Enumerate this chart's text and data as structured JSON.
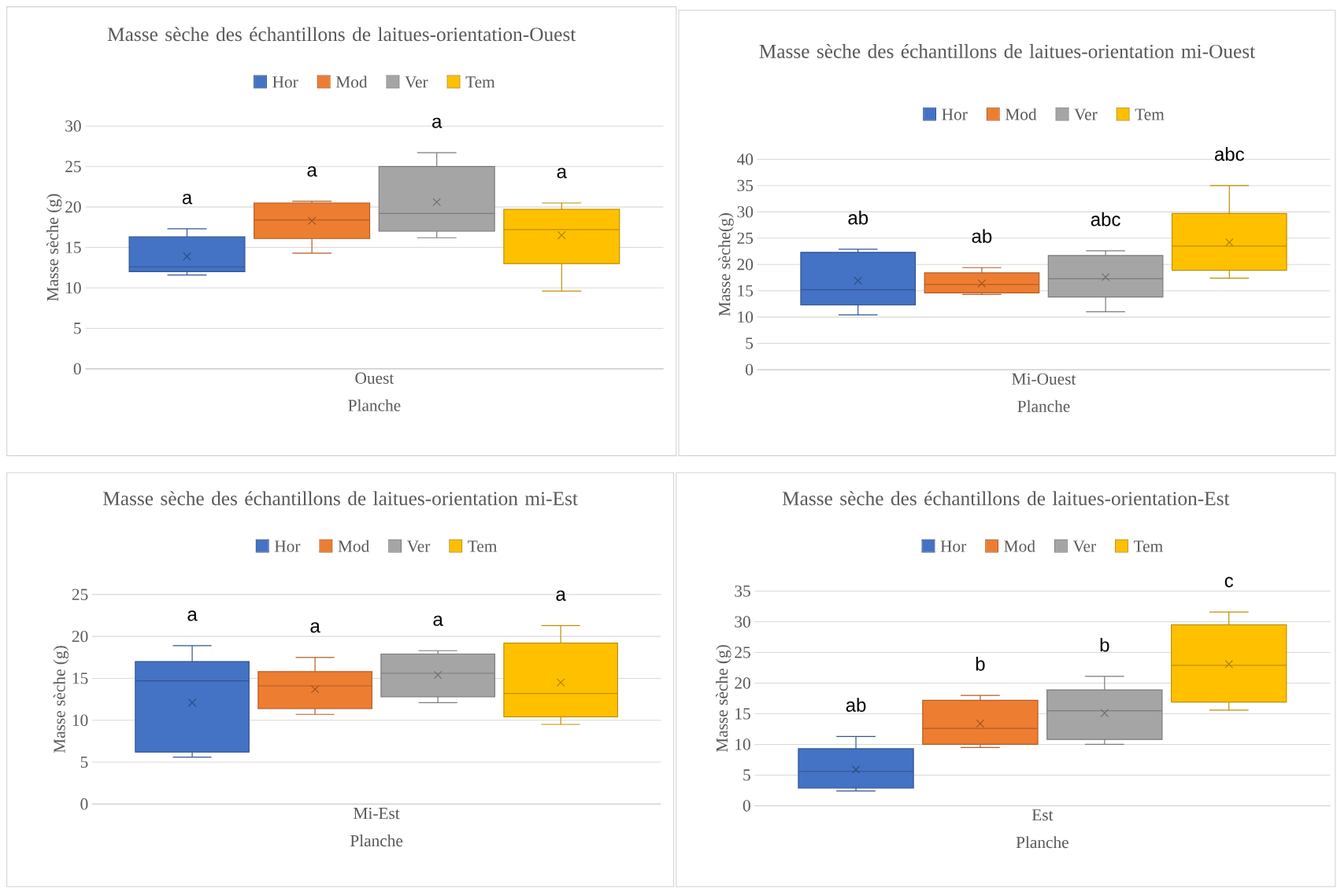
{
  "chart_data": [
    {
      "type": "box",
      "title": "Masse sèche des échantillons de laitues-orientation-Ouest",
      "xlabel": "Planche",
      "ylabel": "Masse sèche (g)",
      "categories": [
        "Ouest"
      ],
      "ylim": [
        0,
        30
      ],
      "yticks": [
        0,
        5,
        10,
        15,
        20,
        25,
        30
      ],
      "grid": "y",
      "legend": "top",
      "marker": "cross",
      "series": [
        {
          "name": "Hor",
          "color": "#4472c4",
          "boxes": [
            {
              "low": 11.6,
              "q1": 12.0,
              "median": 12.6,
              "q3": 16.3,
              "high": 17.3,
              "mean": 13.9
            }
          ]
        },
        {
          "name": "Mod",
          "color": "#ed7d31",
          "boxes": [
            {
              "low": 14.3,
              "q1": 16.1,
              "median": 18.4,
              "q3": 20.5,
              "high": 20.7,
              "mean": 18.3
            }
          ]
        },
        {
          "name": "Ver",
          "color": "#a5a5a5",
          "boxes": [
            {
              "low": 16.2,
              "q1": 17.0,
              "median": 19.2,
              "q3": 25.0,
              "high": 26.7,
              "mean": 20.6
            }
          ]
        },
        {
          "name": "Tem",
          "color": "#ffc000",
          "boxes": [
            {
              "low": 9.6,
              "q1": 13.0,
              "median": 17.2,
              "q3": 19.7,
              "high": 20.5,
              "mean": 16.5
            }
          ]
        }
      ],
      "annotations": [
        "a",
        "a",
        "a",
        "a"
      ]
    },
    {
      "type": "box",
      "title": "Masse sèche des échantillons de laitues-orientation mi-Ouest",
      "xlabel": "Planche",
      "ylabel": "Masse sèche(g)",
      "categories": [
        "Mi-Ouest"
      ],
      "ylim": [
        0,
        40
      ],
      "yticks": [
        0,
        5,
        10,
        15,
        20,
        25,
        30,
        35,
        40
      ],
      "grid": "y",
      "legend": "top",
      "marker": "cross",
      "series": [
        {
          "name": "Hor",
          "color": "#4472c4",
          "boxes": [
            {
              "low": 10.4,
              "q1": 12.3,
              "median": 15.2,
              "q3": 22.3,
              "high": 22.9,
              "mean": 16.9
            }
          ]
        },
        {
          "name": "Mod",
          "color": "#ed7d31",
          "boxes": [
            {
              "low": 14.3,
              "q1": 14.6,
              "median": 16.2,
              "q3": 18.4,
              "high": 19.4,
              "mean": 16.4
            }
          ]
        },
        {
          "name": "Ver",
          "color": "#a5a5a5",
          "boxes": [
            {
              "low": 11.0,
              "q1": 13.8,
              "median": 17.3,
              "q3": 21.7,
              "high": 22.6,
              "mean": 17.6
            }
          ]
        },
        {
          "name": "Tem",
          "color": "#ffc000",
          "boxes": [
            {
              "low": 17.4,
              "q1": 18.9,
              "median": 23.5,
              "q3": 29.7,
              "high": 35.0,
              "mean": 24.2
            }
          ]
        }
      ],
      "annotations": [
        "ab",
        "ab",
        "abc",
        "abc"
      ]
    },
    {
      "type": "box",
      "title": "Masse sèche des échantillons de laitues-orientation mi-Est",
      "xlabel": "Planche",
      "ylabel": "Masse sèche (g)",
      "categories": [
        "Mi-Est"
      ],
      "ylim": [
        0,
        25
      ],
      "yticks": [
        0,
        5,
        10,
        15,
        20,
        25
      ],
      "grid": "y",
      "legend": "top",
      "marker": "cross",
      "series": [
        {
          "name": "Hor",
          "color": "#4472c4",
          "boxes": [
            {
              "low": 5.6,
              "q1": 6.2,
              "median": 14.7,
              "q3": 17.0,
              "high": 18.9,
              "mean": 12.1
            }
          ]
        },
        {
          "name": "Mod",
          "color": "#ed7d31",
          "boxes": [
            {
              "low": 10.7,
              "q1": 11.4,
              "median": 14.1,
              "q3": 15.8,
              "high": 17.5,
              "mean": 13.7
            }
          ]
        },
        {
          "name": "Ver",
          "color": "#a5a5a5",
          "boxes": [
            {
              "low": 12.1,
              "q1": 12.8,
              "median": 15.6,
              "q3": 17.9,
              "high": 18.3,
              "mean": 15.4
            }
          ]
        },
        {
          "name": "Tem",
          "color": "#ffc000",
          "boxes": [
            {
              "low": 9.5,
              "q1": 10.4,
              "median": 13.2,
              "q3": 19.2,
              "high": 21.3,
              "mean": 14.5
            }
          ]
        }
      ],
      "annotations": [
        "a",
        "a",
        "a",
        "a"
      ]
    },
    {
      "type": "box",
      "title": "Masse sèche des échantillons de laitues-orientation-Est",
      "xlabel": "Planche",
      "ylabel": "Masse sèche (g)",
      "categories": [
        "Est"
      ],
      "ylim": [
        0,
        35
      ],
      "yticks": [
        0,
        5,
        10,
        15,
        20,
        25,
        30,
        35
      ],
      "grid": "y",
      "legend": "top",
      "marker": "cross",
      "series": [
        {
          "name": "Hor",
          "color": "#4472c4",
          "boxes": [
            {
              "low": 2.4,
              "q1": 2.9,
              "median": 5.6,
              "q3": 9.3,
              "high": 11.3,
              "mean": 5.9
            }
          ]
        },
        {
          "name": "Mod",
          "color": "#ed7d31",
          "boxes": [
            {
              "low": 9.5,
              "q1": 10.0,
              "median": 12.6,
              "q3": 17.2,
              "high": 18.0,
              "mean": 13.4
            }
          ]
        },
        {
          "name": "Ver",
          "color": "#a5a5a5",
          "boxes": [
            {
              "low": 10.0,
              "q1": 10.8,
              "median": 15.5,
              "q3": 18.9,
              "high": 21.1,
              "mean": 15.1
            }
          ]
        },
        {
          "name": "Tem",
          "color": "#ffc000",
          "boxes": [
            {
              "low": 15.6,
              "q1": 16.9,
              "median": 22.9,
              "q3": 29.5,
              "high": 31.6,
              "mean": 23.1
            }
          ]
        }
      ],
      "annotations": [
        "ab",
        "b",
        "b",
        "c"
      ]
    }
  ]
}
